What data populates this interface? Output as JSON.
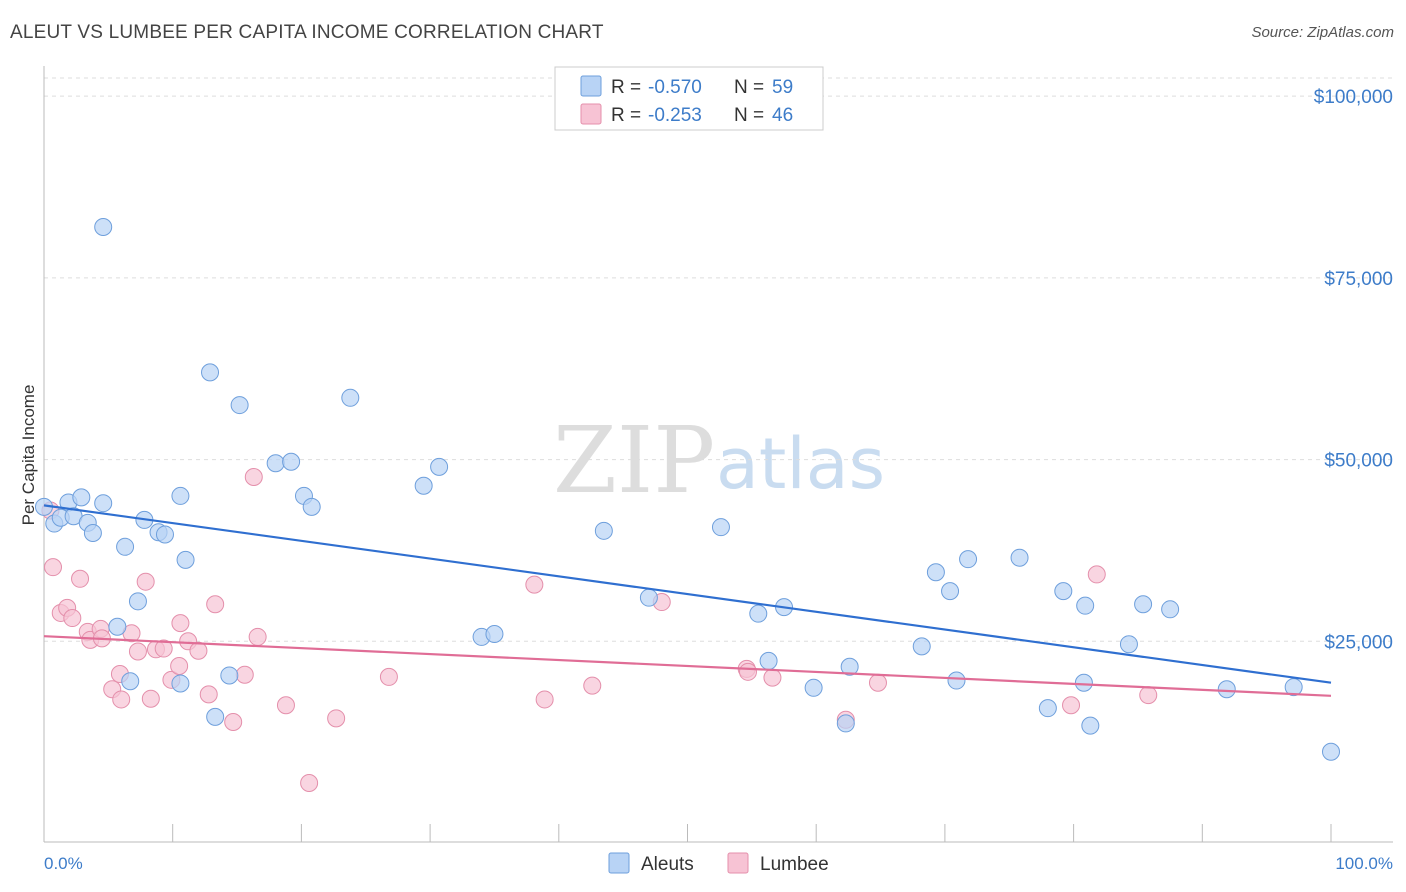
{
  "title": "ALEUT VS LUMBEE PER CAPITA INCOME CORRELATION CHART",
  "source": "Source: ZipAtlas.com",
  "watermark": {
    "zip": "ZIP",
    "atlas": "atlas"
  },
  "colors": {
    "aleut_fill": "#b8d3f5",
    "aleut_stroke": "#6e9fdc",
    "aleut_line": "#2f6fd0",
    "lumbee_fill": "#f7c3d4",
    "lumbee_stroke": "#e48fab",
    "lumbee_line": "#e06d96",
    "tick_text": "#3d7cc9",
    "grid": "#dddddd"
  },
  "legend": {
    "rows": [
      {
        "r_label": "R =",
        "r_value": "-0.570",
        "n_label": "N =",
        "n_value": "59"
      },
      {
        "r_label": "R =",
        "r_value": "-0.253",
        "n_label": "N =",
        "n_value": "46"
      }
    ]
  },
  "bottom_legend": {
    "aleut": "Aleuts",
    "lumbee": "Lumbee"
  },
  "chart_data": {
    "type": "scatter",
    "xlabel": "",
    "ylabel": "Per Capita Income",
    "x_tick_labels": [
      "0.0%",
      "100.0%"
    ],
    "y_tick_labels": [
      "$25,000",
      "$50,000",
      "$75,000",
      "$100,000"
    ],
    "y_ticks": [
      25000,
      50000,
      75000,
      100000
    ],
    "xlim": [
      0,
      100
    ],
    "ylim": [
      0,
      102500
    ],
    "grid": true,
    "series": [
      {
        "name": "Aleuts",
        "trend": [
          [
            0,
            43700
          ],
          [
            100,
            19300
          ]
        ],
        "points": [
          [
            0,
            43500
          ],
          [
            0.8,
            41200
          ],
          [
            1.3,
            42000
          ],
          [
            1.9,
            44100
          ],
          [
            2.3,
            42200
          ],
          [
            2.9,
            44800
          ],
          [
            3.4,
            41300
          ],
          [
            3.8,
            39900
          ],
          [
            4.6,
            82000
          ],
          [
            4.6,
            44000
          ],
          [
            5.7,
            27000
          ],
          [
            6.3,
            38000
          ],
          [
            6.7,
            19500
          ],
          [
            7.3,
            30500
          ],
          [
            7.8,
            41700
          ],
          [
            8.9,
            40000
          ],
          [
            9.4,
            39700
          ],
          [
            10.6,
            19200
          ],
          [
            10.6,
            45000
          ],
          [
            11.0,
            36200
          ],
          [
            12.9,
            62000
          ],
          [
            13.3,
            14600
          ],
          [
            14.4,
            20300
          ],
          [
            15.2,
            57500
          ],
          [
            18.0,
            49500
          ],
          [
            19.2,
            49700
          ],
          [
            20.2,
            45000
          ],
          [
            20.8,
            43500
          ],
          [
            23.8,
            58500
          ],
          [
            29.5,
            46400
          ],
          [
            30.7,
            49000
          ],
          [
            34.0,
            25600
          ],
          [
            35.0,
            26000
          ],
          [
            43.5,
            40200
          ],
          [
            47.0,
            31000
          ],
          [
            52.6,
            40700
          ],
          [
            55.5,
            28800
          ],
          [
            56.3,
            22300
          ],
          [
            57.5,
            29700
          ],
          [
            59.8,
            18600
          ],
          [
            62.3,
            13700
          ],
          [
            62.6,
            21500
          ],
          [
            68.2,
            24300
          ],
          [
            69.3,
            34500
          ],
          [
            70.4,
            31900
          ],
          [
            70.9,
            19600
          ],
          [
            71.8,
            36300
          ],
          [
            75.8,
            36500
          ],
          [
            78.0,
            15800
          ],
          [
            79.2,
            31900
          ],
          [
            80.8,
            19300
          ],
          [
            80.9,
            29900
          ],
          [
            81.3,
            13400
          ],
          [
            84.3,
            24600
          ],
          [
            85.4,
            30100
          ],
          [
            87.5,
            29400
          ],
          [
            91.9,
            18400
          ],
          [
            97.1,
            18700
          ],
          [
            100.0,
            9800
          ]
        ]
      },
      {
        "name": "Lumbee",
        "trend": [
          [
            0,
            25700
          ],
          [
            100,
            17500
          ]
        ],
        "points": [
          [
            0.5,
            43000
          ],
          [
            0.7,
            35200
          ],
          [
            1.3,
            28900
          ],
          [
            1.8,
            29600
          ],
          [
            2.2,
            28200
          ],
          [
            2.8,
            33600
          ],
          [
            3.4,
            26300
          ],
          [
            3.6,
            25200
          ],
          [
            4.4,
            26700
          ],
          [
            4.5,
            25400
          ],
          [
            5.3,
            18400
          ],
          [
            5.9,
            20500
          ],
          [
            6.0,
            17000
          ],
          [
            6.8,
            26100
          ],
          [
            7.3,
            23600
          ],
          [
            7.9,
            33200
          ],
          [
            8.3,
            17100
          ],
          [
            8.7,
            23900
          ],
          [
            9.3,
            24000
          ],
          [
            9.9,
            19700
          ],
          [
            10.5,
            21600
          ],
          [
            10.6,
            27500
          ],
          [
            11.2,
            25000
          ],
          [
            12.0,
            23700
          ],
          [
            12.8,
            17700
          ],
          [
            13.3,
            30100
          ],
          [
            14.7,
            13900
          ],
          [
            15.6,
            20400
          ],
          [
            16.3,
            47600
          ],
          [
            16.6,
            25600
          ],
          [
            18.8,
            16200
          ],
          [
            20.6,
            5500
          ],
          [
            22.7,
            14400
          ],
          [
            26.8,
            20100
          ],
          [
            38.1,
            32800
          ],
          [
            38.9,
            17000
          ],
          [
            42.6,
            18900
          ],
          [
            48.0,
            30400
          ],
          [
            54.6,
            21200
          ],
          [
            54.7,
            20800
          ],
          [
            56.6,
            20000
          ],
          [
            62.3,
            14200
          ],
          [
            64.8,
            19300
          ],
          [
            79.8,
            16200
          ],
          [
            81.8,
            34200
          ],
          [
            85.8,
            17600
          ]
        ]
      }
    ]
  }
}
